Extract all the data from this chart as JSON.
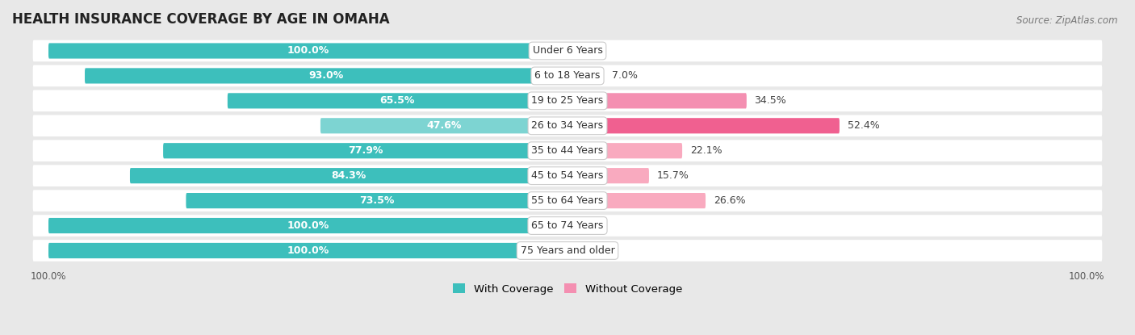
{
  "title": "HEALTH INSURANCE COVERAGE BY AGE IN OMAHA",
  "source": "Source: ZipAtlas.com",
  "categories": [
    "Under 6 Years",
    "6 to 18 Years",
    "19 to 25 Years",
    "26 to 34 Years",
    "35 to 44 Years",
    "45 to 54 Years",
    "55 to 64 Years",
    "65 to 74 Years",
    "75 Years and older"
  ],
  "with_coverage": [
    100.0,
    93.0,
    65.5,
    47.6,
    77.9,
    84.3,
    73.5,
    100.0,
    100.0
  ],
  "without_coverage": [
    0.0,
    7.0,
    34.5,
    52.4,
    22.1,
    15.7,
    26.6,
    0.0,
    0.0
  ],
  "color_with": "#3DBFBC",
  "color_with_light": "#7DD4D2",
  "color_without_dark": "#F06090",
  "color_without_light": "#F9AABF",
  "color_without_pale": "#FAC4D2",
  "bg_color": "#E8E8E8",
  "row_bg": "#F2F2F2",
  "title_fontsize": 12,
  "label_fontsize": 9,
  "cat_fontsize": 9,
  "bar_height": 0.62,
  "legend_label_with": "With Coverage",
  "legend_label_without": "Without Coverage",
  "without_colors": [
    "#FAC4D2",
    "#F9AABF",
    "#F48FB1",
    "#F06090",
    "#F9AABF",
    "#F9AABF",
    "#F9AABF",
    "#FAC4D2",
    "#FAC4D2"
  ],
  "with_colors": [
    "#3DBFBC",
    "#3DBFBC",
    "#3DBFBC",
    "#7DD4D2",
    "#3DBFBC",
    "#3DBFBC",
    "#3DBFBC",
    "#3DBFBC",
    "#3DBFBC"
  ]
}
